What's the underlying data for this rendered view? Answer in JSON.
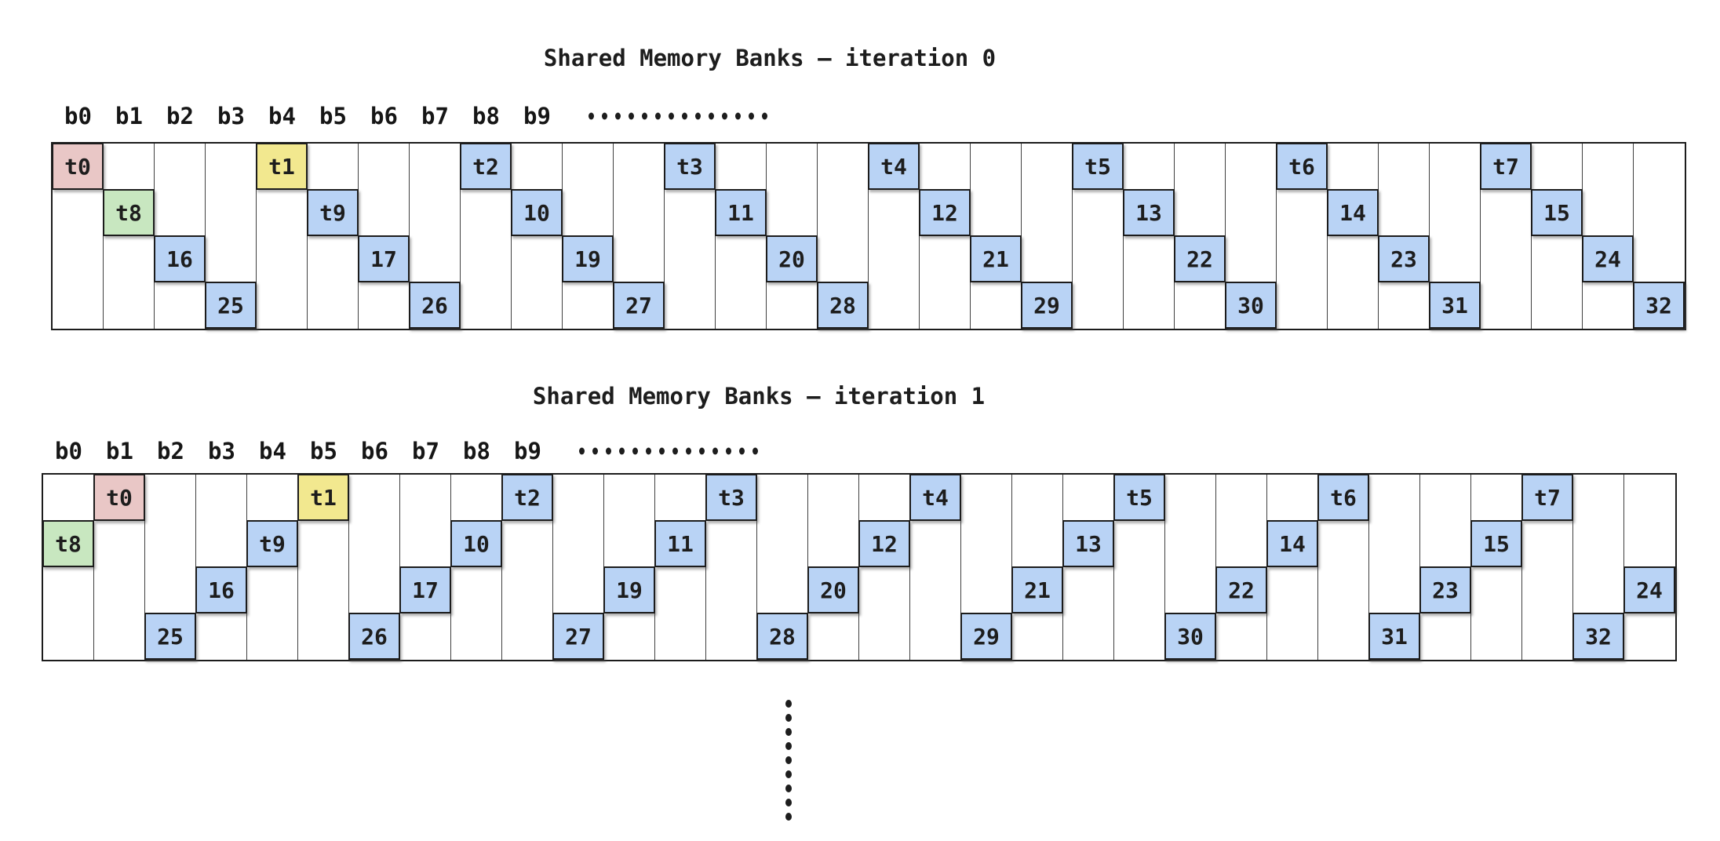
{
  "colors": {
    "blue": "#b9d3f5",
    "pink": "#e9c7c6",
    "green": "#c8e7c0",
    "yellow": "#f2e88f",
    "cell_border": "#1c1c1c",
    "column_line": "#3f3f3f",
    "text": "#1d1d1d"
  },
  "bank_labels": [
    "b0",
    "b1",
    "b2",
    "b3",
    "b4",
    "b5",
    "b6",
    "b7",
    "b8",
    "b9"
  ],
  "bank_dots_count": 14,
  "continuation_dots_count": 9,
  "sections": [
    {
      "title": "Shared Memory Banks – iteration 0",
      "cells": [
        {
          "label": "t0",
          "row": 0,
          "col": 0,
          "fill": "pink"
        },
        {
          "label": "t1",
          "row": 0,
          "col": 4,
          "fill": "yellow"
        },
        {
          "label": "t2",
          "row": 0,
          "col": 8,
          "fill": "blue"
        },
        {
          "label": "t3",
          "row": 0,
          "col": 12,
          "fill": "blue"
        },
        {
          "label": "t4",
          "row": 0,
          "col": 16,
          "fill": "blue"
        },
        {
          "label": "t5",
          "row": 0,
          "col": 20,
          "fill": "blue"
        },
        {
          "label": "t6",
          "row": 0,
          "col": 24,
          "fill": "blue"
        },
        {
          "label": "t7",
          "row": 0,
          "col": 28,
          "fill": "blue"
        },
        {
          "label": "t8",
          "row": 1,
          "col": 1,
          "fill": "green"
        },
        {
          "label": "t9",
          "row": 1,
          "col": 5,
          "fill": "blue"
        },
        {
          "label": "10",
          "row": 1,
          "col": 9,
          "fill": "blue"
        },
        {
          "label": "11",
          "row": 1,
          "col": 13,
          "fill": "blue"
        },
        {
          "label": "12",
          "row": 1,
          "col": 17,
          "fill": "blue"
        },
        {
          "label": "13",
          "row": 1,
          "col": 21,
          "fill": "blue"
        },
        {
          "label": "14",
          "row": 1,
          "col": 25,
          "fill": "blue"
        },
        {
          "label": "15",
          "row": 1,
          "col": 29,
          "fill": "blue"
        },
        {
          "label": "16",
          "row": 2,
          "col": 2,
          "fill": "blue"
        },
        {
          "label": "17",
          "row": 2,
          "col": 6,
          "fill": "blue"
        },
        {
          "label": "19",
          "row": 2,
          "col": 10,
          "fill": "blue"
        },
        {
          "label": "20",
          "row": 2,
          "col": 14,
          "fill": "blue"
        },
        {
          "label": "21",
          "row": 2,
          "col": 18,
          "fill": "blue"
        },
        {
          "label": "22",
          "row": 2,
          "col": 22,
          "fill": "blue"
        },
        {
          "label": "23",
          "row": 2,
          "col": 26,
          "fill": "blue"
        },
        {
          "label": "24",
          "row": 2,
          "col": 30,
          "fill": "blue"
        },
        {
          "label": "25",
          "row": 3,
          "col": 3,
          "fill": "blue"
        },
        {
          "label": "26",
          "row": 3,
          "col": 7,
          "fill": "blue"
        },
        {
          "label": "27",
          "row": 3,
          "col": 11,
          "fill": "blue"
        },
        {
          "label": "28",
          "row": 3,
          "col": 15,
          "fill": "blue"
        },
        {
          "label": "29",
          "row": 3,
          "col": 19,
          "fill": "blue"
        },
        {
          "label": "30",
          "row": 3,
          "col": 23,
          "fill": "blue"
        },
        {
          "label": "31",
          "row": 3,
          "col": 27,
          "fill": "blue"
        },
        {
          "label": "32",
          "row": 3,
          "col": 31,
          "fill": "blue"
        }
      ]
    },
    {
      "title": "Shared Memory Banks – iteration 1",
      "cells": [
        {
          "label": "t0",
          "row": 0,
          "col": 1,
          "fill": "pink"
        },
        {
          "label": "t1",
          "row": 0,
          "col": 5,
          "fill": "yellow"
        },
        {
          "label": "t2",
          "row": 0,
          "col": 9,
          "fill": "blue"
        },
        {
          "label": "t3",
          "row": 0,
          "col": 13,
          "fill": "blue"
        },
        {
          "label": "t4",
          "row": 0,
          "col": 17,
          "fill": "blue"
        },
        {
          "label": "t5",
          "row": 0,
          "col": 21,
          "fill": "blue"
        },
        {
          "label": "t6",
          "row": 0,
          "col": 25,
          "fill": "blue"
        },
        {
          "label": "t7",
          "row": 0,
          "col": 29,
          "fill": "blue"
        },
        {
          "label": "t8",
          "row": 1,
          "col": 0,
          "fill": "green"
        },
        {
          "label": "t9",
          "row": 1,
          "col": 4,
          "fill": "blue"
        },
        {
          "label": "10",
          "row": 1,
          "col": 8,
          "fill": "blue"
        },
        {
          "label": "11",
          "row": 1,
          "col": 12,
          "fill": "blue"
        },
        {
          "label": "12",
          "row": 1,
          "col": 16,
          "fill": "blue"
        },
        {
          "label": "13",
          "row": 1,
          "col": 20,
          "fill": "blue"
        },
        {
          "label": "14",
          "row": 1,
          "col": 24,
          "fill": "blue"
        },
        {
          "label": "15",
          "row": 1,
          "col": 28,
          "fill": "blue"
        },
        {
          "label": "16",
          "row": 2,
          "col": 3,
          "fill": "blue"
        },
        {
          "label": "17",
          "row": 2,
          "col": 7,
          "fill": "blue"
        },
        {
          "label": "19",
          "row": 2,
          "col": 11,
          "fill": "blue"
        },
        {
          "label": "20",
          "row": 2,
          "col": 15,
          "fill": "blue"
        },
        {
          "label": "21",
          "row": 2,
          "col": 19,
          "fill": "blue"
        },
        {
          "label": "22",
          "row": 2,
          "col": 23,
          "fill": "blue"
        },
        {
          "label": "23",
          "row": 2,
          "col": 27,
          "fill": "blue"
        },
        {
          "label": "24",
          "row": 2,
          "col": 31,
          "fill": "blue"
        },
        {
          "label": "25",
          "row": 3,
          "col": 2,
          "fill": "blue"
        },
        {
          "label": "26",
          "row": 3,
          "col": 6,
          "fill": "blue"
        },
        {
          "label": "27",
          "row": 3,
          "col": 10,
          "fill": "blue"
        },
        {
          "label": "28",
          "row": 3,
          "col": 14,
          "fill": "blue"
        },
        {
          "label": "29",
          "row": 3,
          "col": 18,
          "fill": "blue"
        },
        {
          "label": "30",
          "row": 3,
          "col": 22,
          "fill": "blue"
        },
        {
          "label": "31",
          "row": 3,
          "col": 26,
          "fill": "blue"
        },
        {
          "label": "32",
          "row": 3,
          "col": 30,
          "fill": "blue"
        }
      ]
    }
  ]
}
